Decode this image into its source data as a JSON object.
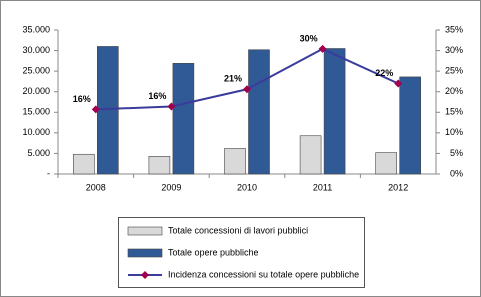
{
  "chart_data": {
    "type": "bar",
    "categories": [
      "2008",
      "2009",
      "2010",
      "2011",
      "2012"
    ],
    "series": [
      {
        "name": "Totale concessioni di lavori pubblici",
        "type": "bar",
        "color": "#d9d9d9",
        "values": [
          4800,
          4300,
          6200,
          9300,
          5200
        ]
      },
      {
        "name": "Totale opere pubbliche",
        "type": "bar",
        "color": "#2f5a96",
        "values": [
          31000,
          26900,
          30200,
          30500,
          23600
        ]
      },
      {
        "name": "Incidenza concessioni su totale opere pubbliche",
        "type": "line",
        "axis": "y2",
        "color": "#3b3b9b",
        "marker_color": "#a0004c",
        "values": [
          15.7,
          16.4,
          20.6,
          30.4,
          22.0
        ],
        "value_labels": [
          "16%",
          "16%",
          "21%",
          "30%",
          "22%"
        ]
      }
    ],
    "ylim": [
      0,
      35000
    ],
    "yticks": [
      {
        "value": 0,
        "label": "-"
      },
      {
        "value": 5000,
        "label": "5.000"
      },
      {
        "value": 10000,
        "label": "10.000"
      },
      {
        "value": 15000,
        "label": "15.000"
      },
      {
        "value": 20000,
        "label": "20.000"
      },
      {
        "value": 25000,
        "label": "25.000"
      },
      {
        "value": 30000,
        "label": "30.000"
      },
      {
        "value": 35000,
        "label": "35.000"
      }
    ],
    "y2lim": [
      0,
      35
    ],
    "y2ticks": [
      {
        "value": 0,
        "label": "0%"
      },
      {
        "value": 5,
        "label": "5%"
      },
      {
        "value": 10,
        "label": "10%"
      },
      {
        "value": 15,
        "label": "15%"
      },
      {
        "value": 20,
        "label": "20%"
      },
      {
        "value": 25,
        "label": "25%"
      },
      {
        "value": 30,
        "label": "30%"
      },
      {
        "value": 35,
        "label": "35%"
      }
    ],
    "grid": false,
    "legend": "bottom"
  }
}
